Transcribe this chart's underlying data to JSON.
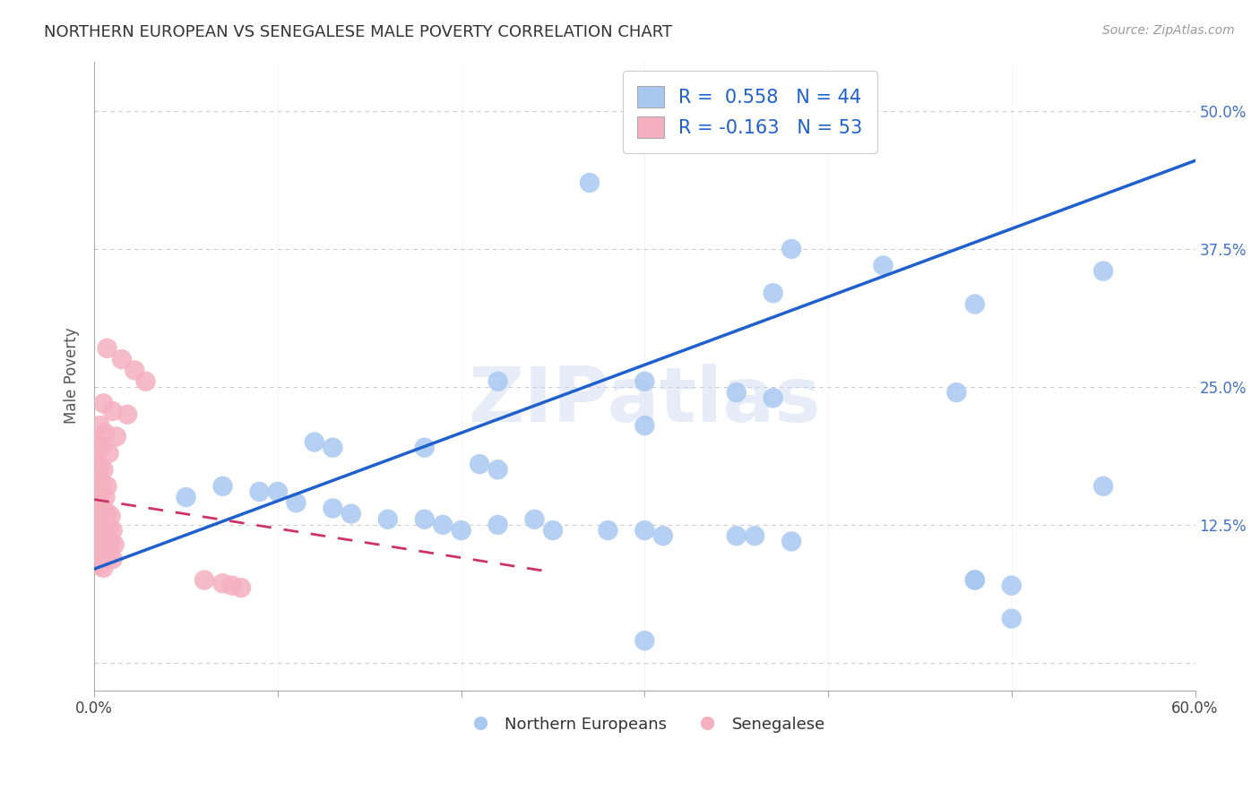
{
  "title": "NORTHERN EUROPEAN VS SENEGALESE MALE POVERTY CORRELATION CHART",
  "source": "Source: ZipAtlas.com",
  "ylabel": "Male Poverty",
  "yticks": [
    0.0,
    0.125,
    0.25,
    0.375,
    0.5
  ],
  "ytick_labels": [
    "",
    "12.5%",
    "25.0%",
    "37.5%",
    "50.0%"
  ],
  "xlim": [
    0.0,
    0.6
  ],
  "ylim": [
    -0.025,
    0.545
  ],
  "blue_R": 0.558,
  "blue_N": 44,
  "pink_R": -0.163,
  "pink_N": 53,
  "blue_color": "#A8C8F0",
  "pink_color": "#F5B0C0",
  "blue_line_color": "#2060CC",
  "pink_line_color": "#CC3366",
  "blue_scatter": [
    [
      0.42,
      0.485
    ],
    [
      0.27,
      0.435
    ],
    [
      0.38,
      0.375
    ],
    [
      0.43,
      0.36
    ],
    [
      0.37,
      0.335
    ],
    [
      0.48,
      0.325
    ],
    [
      0.3,
      0.255
    ],
    [
      0.35,
      0.245
    ],
    [
      0.22,
      0.255
    ],
    [
      0.37,
      0.24
    ],
    [
      0.47,
      0.245
    ],
    [
      0.3,
      0.215
    ],
    [
      0.18,
      0.195
    ],
    [
      0.21,
      0.18
    ],
    [
      0.22,
      0.175
    ],
    [
      0.12,
      0.2
    ],
    [
      0.13,
      0.195
    ],
    [
      0.05,
      0.15
    ],
    [
      0.07,
      0.16
    ],
    [
      0.09,
      0.155
    ],
    [
      0.1,
      0.155
    ],
    [
      0.11,
      0.145
    ],
    [
      0.13,
      0.14
    ],
    [
      0.14,
      0.135
    ],
    [
      0.16,
      0.13
    ],
    [
      0.18,
      0.13
    ],
    [
      0.19,
      0.125
    ],
    [
      0.2,
      0.12
    ],
    [
      0.22,
      0.125
    ],
    [
      0.24,
      0.13
    ],
    [
      0.25,
      0.12
    ],
    [
      0.28,
      0.12
    ],
    [
      0.3,
      0.12
    ],
    [
      0.31,
      0.115
    ],
    [
      0.35,
      0.115
    ],
    [
      0.36,
      0.115
    ],
    [
      0.38,
      0.11
    ],
    [
      0.48,
      0.075
    ],
    [
      0.5,
      0.04
    ],
    [
      0.55,
      0.355
    ],
    [
      0.55,
      0.16
    ],
    [
      0.3,
      0.02
    ],
    [
      0.48,
      0.075
    ],
    [
      0.5,
      0.07
    ]
  ],
  "pink_scatter": [
    [
      0.007,
      0.285
    ],
    [
      0.015,
      0.275
    ],
    [
      0.022,
      0.265
    ],
    [
      0.028,
      0.255
    ],
    [
      0.005,
      0.235
    ],
    [
      0.01,
      0.228
    ],
    [
      0.018,
      0.225
    ],
    [
      0.003,
      0.215
    ],
    [
      0.006,
      0.208
    ],
    [
      0.012,
      0.205
    ],
    [
      0.001,
      0.2
    ],
    [
      0.004,
      0.195
    ],
    [
      0.008,
      0.19
    ],
    [
      0.001,
      0.183
    ],
    [
      0.003,
      0.178
    ],
    [
      0.005,
      0.175
    ],
    [
      0.002,
      0.168
    ],
    [
      0.004,
      0.163
    ],
    [
      0.007,
      0.16
    ],
    [
      0.002,
      0.155
    ],
    [
      0.003,
      0.152
    ],
    [
      0.006,
      0.15
    ],
    [
      0.001,
      0.145
    ],
    [
      0.002,
      0.142
    ],
    [
      0.004,
      0.14
    ],
    [
      0.005,
      0.138
    ],
    [
      0.007,
      0.136
    ],
    [
      0.009,
      0.133
    ],
    [
      0.001,
      0.13
    ],
    [
      0.002,
      0.128
    ],
    [
      0.004,
      0.126
    ],
    [
      0.006,
      0.124
    ],
    [
      0.008,
      0.122
    ],
    [
      0.01,
      0.12
    ],
    [
      0.002,
      0.117
    ],
    [
      0.003,
      0.115
    ],
    [
      0.005,
      0.113
    ],
    [
      0.007,
      0.111
    ],
    [
      0.009,
      0.109
    ],
    [
      0.011,
      0.107
    ],
    [
      0.001,
      0.104
    ],
    [
      0.002,
      0.102
    ],
    [
      0.004,
      0.1
    ],
    [
      0.006,
      0.098
    ],
    [
      0.008,
      0.096
    ],
    [
      0.01,
      0.094
    ],
    [
      0.002,
      0.09
    ],
    [
      0.003,
      0.088
    ],
    [
      0.005,
      0.086
    ],
    [
      0.06,
      0.075
    ],
    [
      0.07,
      0.072
    ],
    [
      0.075,
      0.07
    ],
    [
      0.08,
      0.068
    ]
  ],
  "blue_line": [
    [
      0.0,
      0.085
    ],
    [
      0.6,
      0.455
    ]
  ],
  "pink_line": [
    [
      0.0,
      0.148
    ],
    [
      0.25,
      0.082
    ]
  ],
  "watermark": "ZIPatlas",
  "background_color": "#FFFFFF",
  "grid_color": "#CCCCCC"
}
